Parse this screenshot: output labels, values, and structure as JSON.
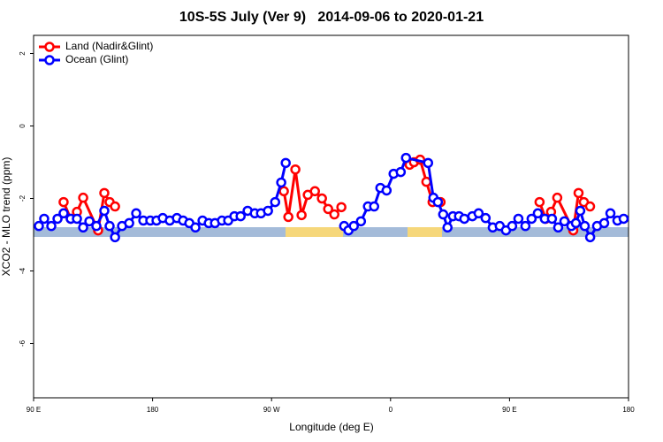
{
  "chart_data": {
    "type": "line",
    "title": "10S-5S July (Ver 9)   2014-09-06 to 2020-01-21",
    "xlabel": "Longitude (deg E)",
    "ylabel": "XCO2 - MLO trend (ppm)",
    "xlim": [
      90,
      540
    ],
    "xticks": [
      {
        "value": 90,
        "label": "90 E"
      },
      {
        "value": 180,
        "label": "180"
      },
      {
        "value": 270,
        "label": "90 W"
      },
      {
        "value": 360,
        "label": "0"
      },
      {
        "value": 450,
        "label": "90 E"
      },
      {
        "value": 540,
        "label": "180"
      }
    ],
    "ylim": [
      -7.5,
      2.5
    ],
    "yticks": [
      -6,
      -4,
      -2,
      0,
      2
    ],
    "legend": "top-left",
    "series": [
      {
        "name": "Land (Nadir&Glint)",
        "color": "#ff0000",
        "x": [
          112.7,
          118.1,
          122.8,
          127.5,
          138.8,
          143.5,
          147.5,
          151.6,
          null,
          279.3,
          282.7,
          288.0,
          292.7,
          297.4,
          302.8,
          308.1,
          312.8,
          317.5,
          322.8,
          null,
          374.4,
          377.7,
          382.4,
          387.1,
          391.8,
          397.8,
          null,
          472.7,
          477.4,
          481.4,
          486.1,
          498.2,
          502.2,
          506.2,
          510.9
        ],
        "values": [
          -2.1,
          -2.56,
          -2.37,
          -1.98,
          -2.88,
          -1.85,
          -2.1,
          -2.22,
          null,
          -1.8,
          -2.51,
          -1.2,
          -2.46,
          -1.9,
          -1.8,
          -2.0,
          -2.29,
          -2.44,
          -2.24,
          null,
          -1.07,
          -1.0,
          -0.93,
          -1.54,
          -2.1,
          -2.1,
          null,
          -2.1,
          -2.56,
          -2.37,
          -1.98,
          -2.88,
          -1.85,
          -2.1,
          -2.22
        ]
      },
      {
        "name": "Ocean (Glint)",
        "color": "#0000ff",
        "x": [
          94.0,
          98.0,
          103.4,
          108.1,
          112.7,
          118.1,
          122.8,
          127.5,
          132.2,
          137.5,
          143.5,
          147.5,
          151.6,
          156.9,
          162.3,
          167.6,
          173.0,
          178.3,
          183.0,
          187.7,
          193.0,
          198.4,
          203.1,
          207.8,
          212.4,
          217.8,
          222.5,
          227.2,
          232.5,
          237.2,
          241.9,
          246.6,
          251.9,
          257.3,
          262.0,
          267.3,
          272.7,
          277.3,
          280.7,
          null,
          324.9,
          328.2,
          332.2,
          337.6,
          342.9,
          347.6,
          352.3,
          357.0,
          362.3,
          367.7,
          371.7,
          388.4,
          392.4,
          395.8,
          399.8,
          403.1,
          407.2,
          411.8,
          415.8,
          421.9,
          426.6,
          431.9,
          437.3,
          442.6,
          447.3,
          452.0,
          456.7,
          462.0,
          466.7,
          471.4,
          476.7,
          482.1,
          486.8,
          491.5,
          496.8,
          500.2,
          503.5,
          506.9,
          511.0,
          516.2,
          521.6,
          526.3,
          531.6,
          536.3
        ],
        "values": [
          -2.76,
          -2.56,
          -2.76,
          -2.56,
          -2.41,
          -2.56,
          -2.56,
          -2.8,
          -2.63,
          -2.76,
          -2.34,
          -2.76,
          -3.07,
          -2.76,
          -2.68,
          -2.41,
          -2.61,
          -2.61,
          -2.61,
          -2.54,
          -2.61,
          -2.54,
          -2.61,
          -2.68,
          -2.8,
          -2.61,
          -2.68,
          -2.68,
          -2.61,
          -2.61,
          -2.49,
          -2.49,
          -2.34,
          -2.41,
          -2.41,
          -2.34,
          -2.1,
          -1.56,
          -1.02,
          null,
          -2.76,
          -2.88,
          -2.76,
          -2.63,
          -2.22,
          -2.22,
          -1.71,
          -1.78,
          -1.32,
          -1.27,
          -0.88,
          -1.02,
          -1.98,
          -2.1,
          -2.44,
          -2.8,
          -2.49,
          -2.49,
          -2.56,
          -2.49,
          -2.41,
          -2.54,
          -2.8,
          -2.76,
          -2.88,
          -2.76,
          -2.56,
          -2.76,
          -2.56,
          -2.41,
          -2.56,
          -2.56,
          -2.8,
          -2.63,
          -2.76,
          -2.68,
          -2.34,
          -2.76,
          -3.07,
          -2.76,
          -2.68,
          -2.41,
          -2.61,
          -2.56
        ]
      }
    ]
  }
}
